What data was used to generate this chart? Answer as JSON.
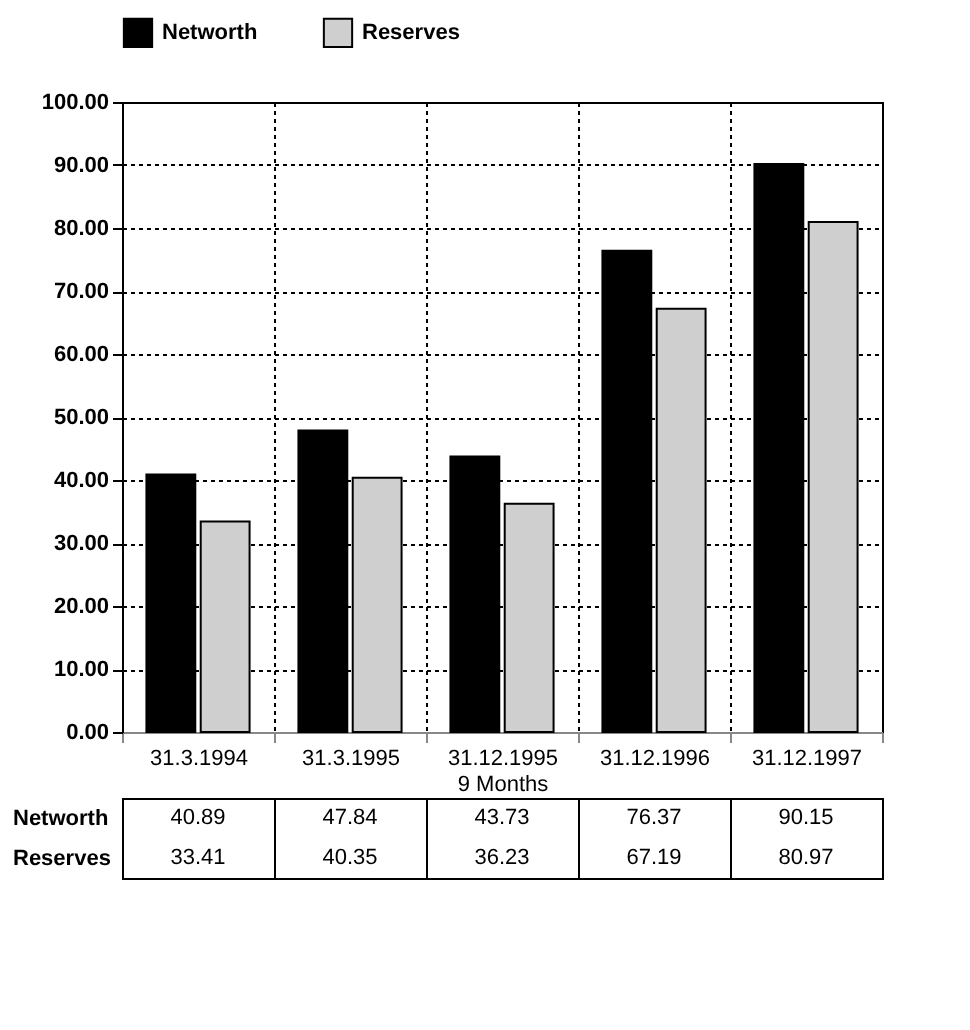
{
  "chart_data": {
    "type": "bar",
    "categories": [
      "31.3.1994",
      "31.3.1995",
      "31.12.1995\n9 Months",
      "31.12.1996",
      "31.12.1997"
    ],
    "series": [
      {
        "name": "Networth",
        "color": "#000000",
        "values": [
          40.89,
          47.84,
          43.73,
          76.37,
          90.15
        ]
      },
      {
        "name": "Reserves",
        "color": "#cfcfcf",
        "values": [
          33.41,
          40.35,
          36.23,
          67.19,
          80.97
        ]
      }
    ],
    "ylim": [
      0,
      100
    ],
    "yticks": [
      {
        "value": 0,
        "label": "0.00"
      },
      {
        "value": 10,
        "label": "10.00"
      },
      {
        "value": 20,
        "label": "20.00"
      },
      {
        "value": 30,
        "label": "30.00"
      },
      {
        "value": 40,
        "label": "40.00"
      },
      {
        "value": 50,
        "label": "50.00"
      },
      {
        "value": 60,
        "label": "60.00"
      },
      {
        "value": 70,
        "label": "70.00"
      },
      {
        "value": 80,
        "label": "80.00"
      },
      {
        "value": 90,
        "label": "90.00"
      },
      {
        "value": 100,
        "label": "100.00"
      }
    ],
    "grid": true,
    "legend": "top",
    "data_labels": true
  }
}
